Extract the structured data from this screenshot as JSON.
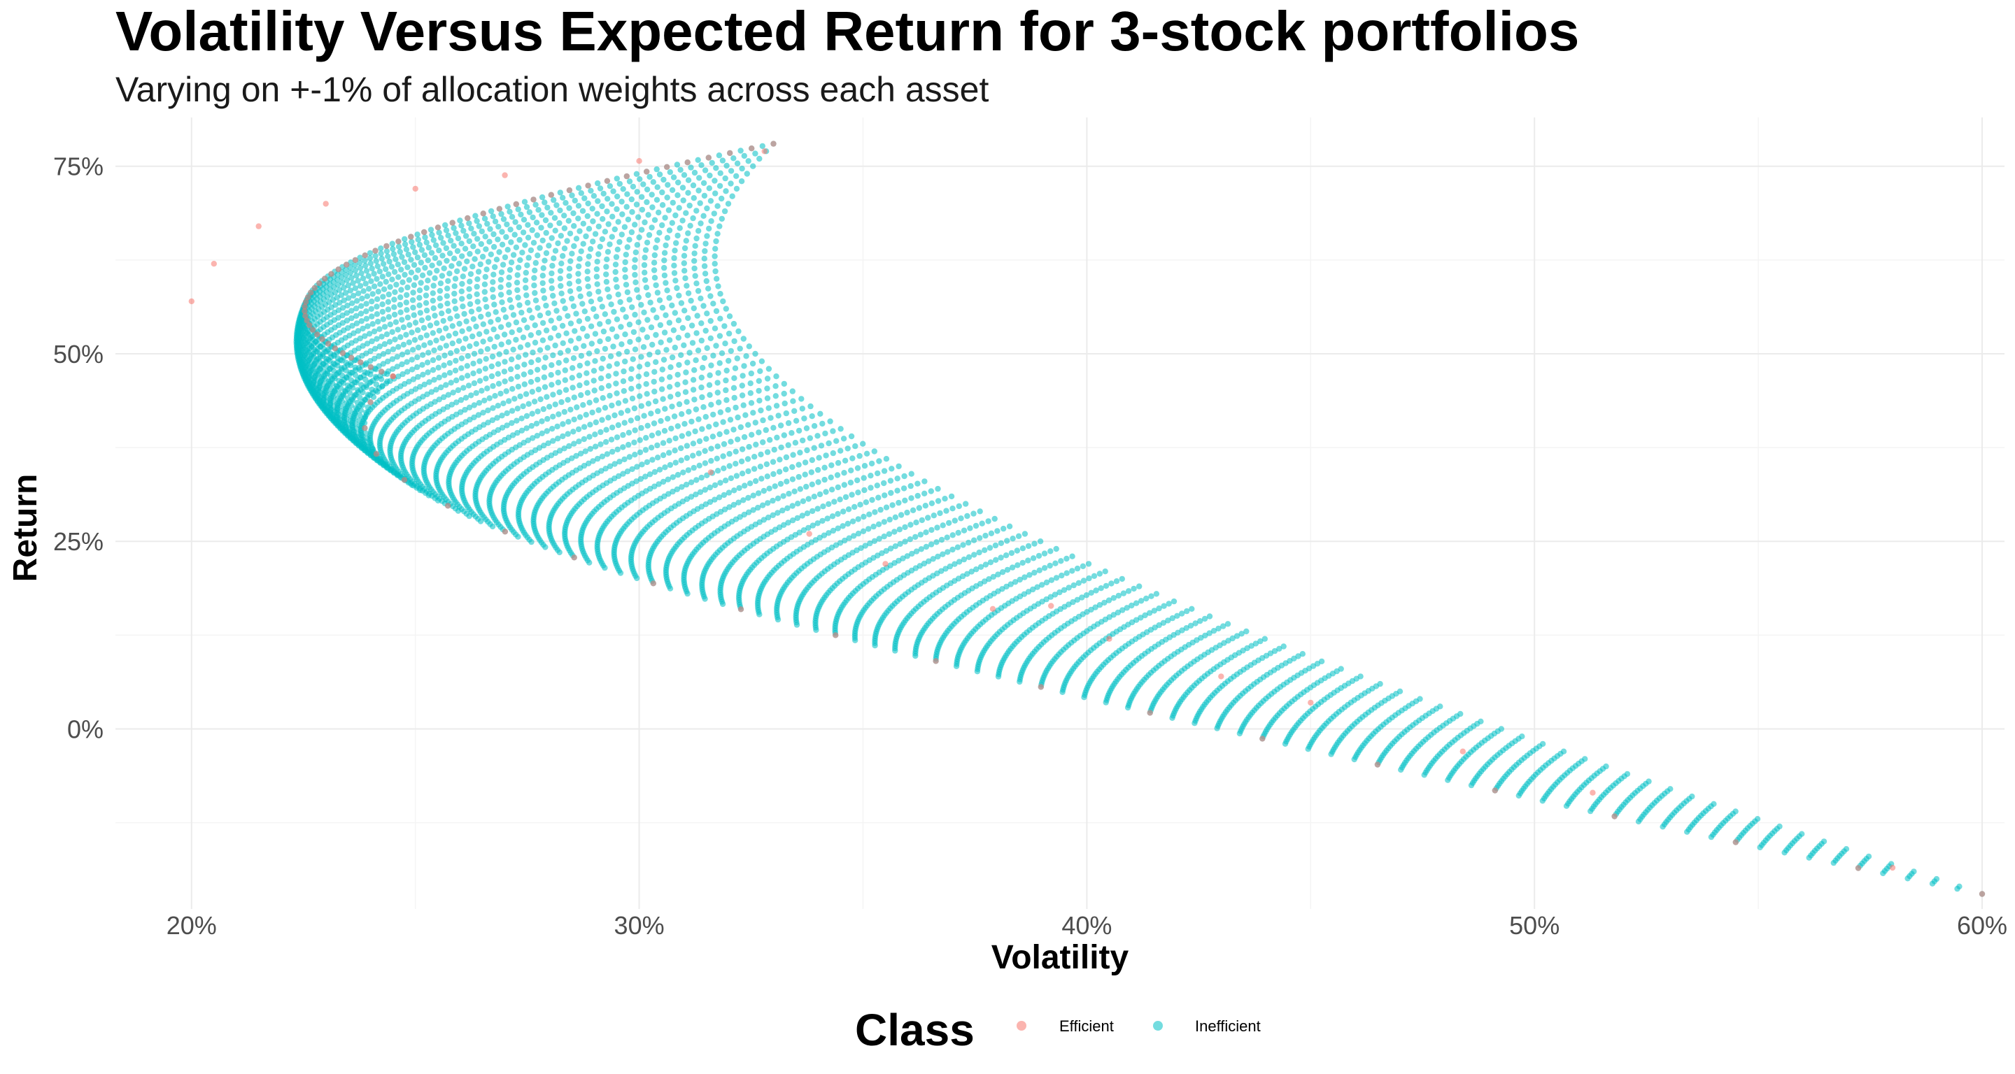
{
  "chart_data": {
    "type": "scatter",
    "title": "Volatility Versus Expected Return for 3-stock portfolios",
    "subtitle": "Varying on +-1% of allocation weights across each asset",
    "xlabel": "Volatility",
    "ylabel": "Return",
    "xlim": [
      0.183,
      0.605
    ],
    "ylim": [
      -0.24,
      0.815
    ],
    "x_ticks": [
      0.2,
      0.3,
      0.4,
      0.5,
      0.6
    ],
    "x_tick_labels": [
      "20%",
      "30%",
      "40%",
      "50%",
      "60%"
    ],
    "y_ticks": [
      0.0,
      0.25,
      0.5,
      0.75
    ],
    "y_tick_labels": [
      "0%",
      "25%",
      "50%",
      "75%"
    ],
    "grid": true,
    "legend": {
      "title": "Class",
      "position": "bottom",
      "entries": [
        {
          "label": "Efficient",
          "color": "#F8766D"
        },
        {
          "label": "Inefficient",
          "color": "#00BFC4"
        }
      ]
    },
    "point_opacity": 0.55,
    "series": [
      {
        "name": "Inefficient",
        "color": "#00BFC4",
        "description_points": [
          [
            0.584,
            -0.195
          ],
          [
            0.569,
            -0.182
          ],
          [
            0.543,
            -0.125
          ],
          [
            0.515,
            -0.085
          ],
          [
            0.48,
            -0.04
          ],
          [
            0.45,
            0.0
          ],
          [
            0.42,
            0.05
          ],
          [
            0.39,
            0.1
          ],
          [
            0.36,
            0.16
          ],
          [
            0.34,
            0.22
          ],
          [
            0.32,
            0.3
          ],
          [
            0.305,
            0.4
          ],
          [
            0.3,
            0.5
          ],
          [
            0.3,
            0.6
          ],
          [
            0.31,
            0.7
          ],
          [
            0.32,
            0.76
          ],
          [
            0.205,
            0.57
          ],
          [
            0.22,
            0.45
          ],
          [
            0.26,
            0.35
          ],
          [
            0.3,
            0.28
          ]
        ]
      },
      {
        "name": "Efficient",
        "color": "#F8766D",
        "description_points": [
          [
            0.328,
            0.77
          ],
          [
            0.3,
            0.757
          ],
          [
            0.27,
            0.738
          ],
          [
            0.25,
            0.72
          ],
          [
            0.23,
            0.7
          ],
          [
            0.215,
            0.67
          ],
          [
            0.205,
            0.62
          ],
          [
            0.2,
            0.57
          ],
          [
            0.316,
            0.342
          ],
          [
            0.338,
            0.26
          ],
          [
            0.355,
            0.22
          ],
          [
            0.379,
            0.16
          ],
          [
            0.392,
            0.164
          ],
          [
            0.405,
            0.12
          ],
          [
            0.43,
            0.07
          ],
          [
            0.45,
            0.035
          ],
          [
            0.484,
            -0.03
          ],
          [
            0.513,
            -0.085
          ],
          [
            0.58,
            -0.185
          ]
        ]
      }
    ]
  }
}
